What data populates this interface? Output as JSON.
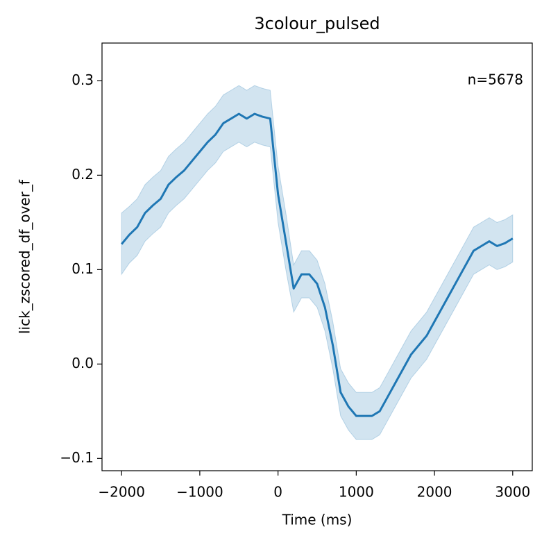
{
  "chart_data": {
    "type": "line",
    "title": "3colour_pulsed",
    "x_label": "Time (ms)",
    "y_label": "lick_zscored_df_over_f",
    "annotation": "n=5678",
    "x": [
      -2000,
      -1900,
      -1800,
      -1700,
      -1600,
      -1500,
      -1400,
      -1300,
      -1200,
      -1100,
      -1000,
      -900,
      -800,
      -700,
      -600,
      -500,
      -400,
      -300,
      -200,
      -100,
      0,
      100,
      200,
      300,
      400,
      500,
      600,
      700,
      800,
      900,
      1000,
      1100,
      1200,
      1300,
      1400,
      1500,
      1600,
      1700,
      1800,
      1900,
      2000,
      2100,
      2200,
      2300,
      2400,
      2500,
      2600,
      2700,
      2800,
      2900,
      3000
    ],
    "series": [
      {
        "color": "#1f77b4",
        "values": [
          0.127,
          0.137,
          0.145,
          0.16,
          0.168,
          0.175,
          0.19,
          0.198,
          0.205,
          0.215,
          0.225,
          0.235,
          0.243,
          0.255,
          0.26,
          0.265,
          0.26,
          0.265,
          0.262,
          0.26,
          0.18,
          0.13,
          0.08,
          0.095,
          0.095,
          0.085,
          0.06,
          0.02,
          -0.03,
          -0.045,
          -0.055,
          -0.055,
          -0.055,
          -0.05,
          -0.035,
          -0.02,
          -0.005,
          0.01,
          0.02,
          0.03,
          0.045,
          0.06,
          0.075,
          0.09,
          0.105,
          0.12,
          0.125,
          0.13,
          0.125,
          0.128,
          0.133
        ],
        "lower": [
          0.095,
          0.107,
          0.115,
          0.13,
          0.138,
          0.145,
          0.16,
          0.168,
          0.175,
          0.185,
          0.195,
          0.205,
          0.213,
          0.225,
          0.23,
          0.235,
          0.23,
          0.235,
          0.232,
          0.23,
          0.15,
          0.1,
          0.055,
          0.07,
          0.07,
          0.06,
          0.035,
          -0.005,
          -0.055,
          -0.07,
          -0.08,
          -0.08,
          -0.08,
          -0.075,
          -0.06,
          -0.045,
          -0.03,
          -0.015,
          -0.005,
          0.005,
          0.02,
          0.035,
          0.05,
          0.065,
          0.08,
          0.095,
          0.1,
          0.105,
          0.1,
          0.103,
          0.108
        ],
        "upper": [
          0.16,
          0.167,
          0.175,
          0.19,
          0.198,
          0.205,
          0.22,
          0.228,
          0.235,
          0.245,
          0.255,
          0.265,
          0.273,
          0.285,
          0.29,
          0.295,
          0.29,
          0.295,
          0.292,
          0.29,
          0.21,
          0.16,
          0.105,
          0.12,
          0.12,
          0.11,
          0.085,
          0.045,
          -0.005,
          -0.02,
          -0.03,
          -0.03,
          -0.03,
          -0.025,
          -0.01,
          0.005,
          0.02,
          0.035,
          0.045,
          0.055,
          0.07,
          0.085,
          0.1,
          0.115,
          0.13,
          0.145,
          0.15,
          0.155,
          0.15,
          0.153,
          0.158
        ]
      }
    ],
    "xlim": [
      -2250,
      3250
    ],
    "ylim": [
      -0.113,
      0.34
    ],
    "xticks": [
      {
        "value": -2000,
        "label": "−2000"
      },
      {
        "value": -1000,
        "label": "−1000"
      },
      0,
      1000,
      2000,
      3000
    ],
    "yticks": [
      {
        "value": -0.1,
        "label": "−0.1"
      },
      {
        "value": 0,
        "label": "0.0"
      },
      0.1,
      0.2,
      0.3
    ]
  }
}
